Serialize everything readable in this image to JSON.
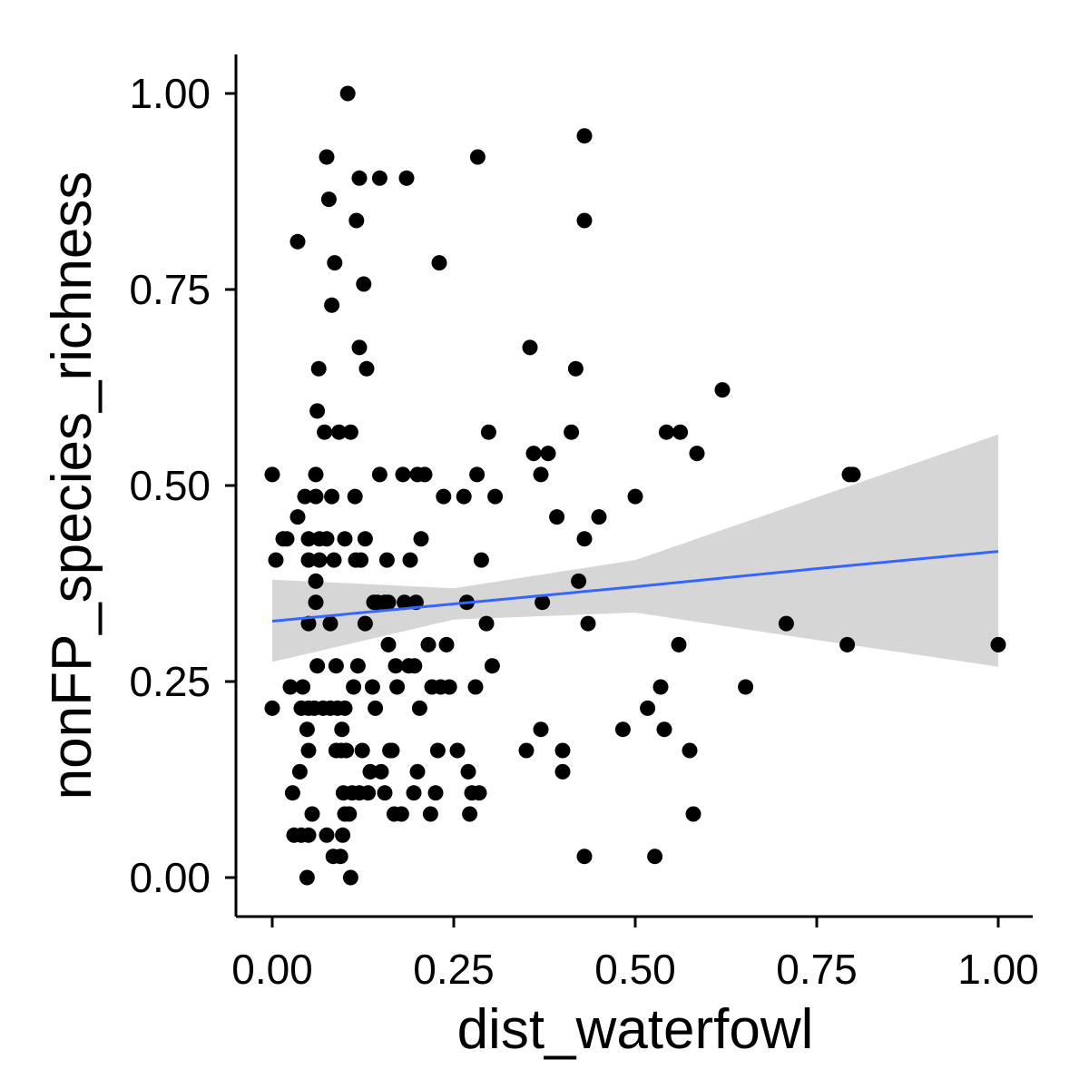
{
  "chart_data": {
    "type": "scatter",
    "title": "",
    "xlabel": "dist_waterfowl",
    "ylabel": "nonFP_species_richness",
    "xlim": [
      -0.05,
      1.05
    ],
    "ylim": [
      -0.05,
      1.05
    ],
    "x_ticks": [
      0,
      0.25,
      0.5,
      0.75,
      1
    ],
    "x_tick_labels": [
      "0.00",
      "0.25",
      "0.50",
      "0.75",
      "1.00"
    ],
    "y_ticks": [
      0,
      0.25,
      0.5,
      0.75,
      1
    ],
    "y_tick_labels": [
      "0.00",
      "0.25",
      "0.50",
      "0.75",
      "1.00"
    ],
    "grid": false,
    "colors": {
      "points": "#000000",
      "fit_line": "#3366ff",
      "ci_band": "#999999"
    },
    "fit": {
      "method": "linear",
      "x": [
        0,
        0.25,
        0.5,
        0.75,
        1
      ],
      "y": [
        0.327,
        0.349,
        0.371,
        0.394,
        0.416
      ],
      "ci_lower": [
        0.275,
        0.329,
        0.338,
        0.303,
        0.269
      ],
      "ci_upper": [
        0.38,
        0.369,
        0.405,
        0.485,
        0.565
      ]
    },
    "points": [
      [
        0.0,
        0.514
      ],
      [
        0.0,
        0.216
      ],
      [
        0.005,
        0.405
      ],
      [
        0.015,
        0.432
      ],
      [
        0.02,
        0.432
      ],
      [
        0.025,
        0.243
      ],
      [
        0.028,
        0.108
      ],
      [
        0.03,
        0.054
      ],
      [
        0.035,
        0.46
      ],
      [
        0.035,
        0.811
      ],
      [
        0.038,
        0.135
      ],
      [
        0.04,
        0.216
      ],
      [
        0.04,
        0.054
      ],
      [
        0.042,
        0.243
      ],
      [
        0.045,
        0.486
      ],
      [
        0.048,
        0.0
      ],
      [
        0.048,
        0.189
      ],
      [
        0.05,
        0.162
      ],
      [
        0.05,
        0.324
      ],
      [
        0.05,
        0.405
      ],
      [
        0.05,
        0.432
      ],
      [
        0.05,
        0.216
      ],
      [
        0.05,
        0.054
      ],
      [
        0.055,
        0.081
      ],
      [
        0.058,
        0.216
      ],
      [
        0.06,
        0.351
      ],
      [
        0.06,
        0.514
      ],
      [
        0.06,
        0.378
      ],
      [
        0.06,
        0.486
      ],
      [
        0.062,
        0.595
      ],
      [
        0.062,
        0.27
      ],
      [
        0.064,
        0.649
      ],
      [
        0.065,
        0.405
      ],
      [
        0.065,
        0.432
      ],
      [
        0.07,
        0.216
      ],
      [
        0.072,
        0.568
      ],
      [
        0.075,
        0.432
      ],
      [
        0.075,
        0.054
      ],
      [
        0.075,
        0.919
      ],
      [
        0.078,
        0.865
      ],
      [
        0.08,
        0.324
      ],
      [
        0.08,
        0.216
      ],
      [
        0.082,
        0.486
      ],
      [
        0.082,
        0.73
      ],
      [
        0.084,
        0.027
      ],
      [
        0.085,
        0.405
      ],
      [
        0.086,
        0.784
      ],
      [
        0.088,
        0.162
      ],
      [
        0.088,
        0.27
      ],
      [
        0.09,
        0.216
      ],
      [
        0.092,
        0.568
      ],
      [
        0.094,
        0.027
      ],
      [
        0.095,
        0.162
      ],
      [
        0.096,
        0.189
      ],
      [
        0.097,
        0.054
      ],
      [
        0.098,
        0.108
      ],
      [
        0.1,
        0.432
      ],
      [
        0.1,
        0.081
      ],
      [
        0.1,
        0.216
      ],
      [
        0.102,
        0.162
      ],
      [
        0.104,
        1.0
      ],
      [
        0.106,
        0.081
      ],
      [
        0.108,
        0.568
      ],
      [
        0.108,
        0.0
      ],
      [
        0.11,
        0.108
      ],
      [
        0.112,
        0.243
      ],
      [
        0.114,
        0.486
      ],
      [
        0.115,
        0.405
      ],
      [
        0.116,
        0.838
      ],
      [
        0.118,
        0.27
      ],
      [
        0.12,
        0.108
      ],
      [
        0.12,
        0.676
      ],
      [
        0.12,
        0.892
      ],
      [
        0.122,
        0.405
      ],
      [
        0.124,
        0.162
      ],
      [
        0.126,
        0.757
      ],
      [
        0.128,
        0.432
      ],
      [
        0.128,
        0.324
      ],
      [
        0.13,
        0.649
      ],
      [
        0.132,
        0.108
      ],
      [
        0.135,
        0.135
      ],
      [
        0.138,
        0.243
      ],
      [
        0.14,
        0.351
      ],
      [
        0.142,
        0.216
      ],
      [
        0.145,
        0.351
      ],
      [
        0.148,
        0.892
      ],
      [
        0.148,
        0.514
      ],
      [
        0.15,
        0.135
      ],
      [
        0.155,
        0.351
      ],
      [
        0.155,
        0.108
      ],
      [
        0.158,
        0.405
      ],
      [
        0.16,
        0.297
      ],
      [
        0.16,
        0.351
      ],
      [
        0.162,
        0.162
      ],
      [
        0.165,
        0.162
      ],
      [
        0.168,
        0.081
      ],
      [
        0.17,
        0.27
      ],
      [
        0.172,
        0.243
      ],
      [
        0.178,
        0.081
      ],
      [
        0.18,
        0.514
      ],
      [
        0.182,
        0.351
      ],
      [
        0.185,
        0.892
      ],
      [
        0.188,
        0.27
      ],
      [
        0.19,
        0.405
      ],
      [
        0.195,
        0.108
      ],
      [
        0.196,
        0.27
      ],
      [
        0.198,
        0.351
      ],
      [
        0.2,
        0.514
      ],
      [
        0.2,
        0.135
      ],
      [
        0.203,
        0.216
      ],
      [
        0.205,
        0.432
      ],
      [
        0.21,
        0.514
      ],
      [
        0.215,
        0.297
      ],
      [
        0.218,
        0.081
      ],
      [
        0.22,
        0.243
      ],
      [
        0.225,
        0.108
      ],
      [
        0.228,
        0.162
      ],
      [
        0.23,
        0.784
      ],
      [
        0.232,
        0.243
      ],
      [
        0.236,
        0.486
      ],
      [
        0.24,
        0.297
      ],
      [
        0.244,
        0.243
      ],
      [
        0.255,
        0.162
      ],
      [
        0.264,
        0.486
      ],
      [
        0.268,
        0.351
      ],
      [
        0.27,
        0.135
      ],
      [
        0.272,
        0.081
      ],
      [
        0.275,
        0.108
      ],
      [
        0.28,
        0.243
      ],
      [
        0.282,
        0.514
      ],
      [
        0.283,
        0.919
      ],
      [
        0.285,
        0.108
      ],
      [
        0.288,
        0.405
      ],
      [
        0.295,
        0.324
      ],
      [
        0.298,
        0.568
      ],
      [
        0.303,
        0.27
      ],
      [
        0.307,
        0.486
      ],
      [
        0.35,
        0.162
      ],
      [
        0.355,
        0.676
      ],
      [
        0.36,
        0.541
      ],
      [
        0.37,
        0.514
      ],
      [
        0.37,
        0.189
      ],
      [
        0.372,
        0.351
      ],
      [
        0.38,
        0.541
      ],
      [
        0.392,
        0.46
      ],
      [
        0.4,
        0.162
      ],
      [
        0.4,
        0.135
      ],
      [
        0.412,
        0.568
      ],
      [
        0.418,
        0.649
      ],
      [
        0.422,
        0.378
      ],
      [
        0.43,
        0.946
      ],
      [
        0.43,
        0.838
      ],
      [
        0.43,
        0.432
      ],
      [
        0.43,
        0.027
      ],
      [
        0.435,
        0.324
      ],
      [
        0.45,
        0.46
      ],
      [
        0.483,
        0.189
      ],
      [
        0.5,
        0.486
      ],
      [
        0.517,
        0.216
      ],
      [
        0.527,
        0.027
      ],
      [
        0.535,
        0.243
      ],
      [
        0.54,
        0.189
      ],
      [
        0.543,
        0.568
      ],
      [
        0.56,
        0.297
      ],
      [
        0.562,
        0.568
      ],
      [
        0.575,
        0.162
      ],
      [
        0.58,
        0.081
      ],
      [
        0.585,
        0.541
      ],
      [
        0.62,
        0.622
      ],
      [
        0.652,
        0.243
      ],
      [
        0.708,
        0.324
      ],
      [
        0.792,
        0.297
      ],
      [
        0.795,
        0.514
      ],
      [
        0.8,
        0.514
      ],
      [
        1.0,
        0.297
      ]
    ]
  }
}
